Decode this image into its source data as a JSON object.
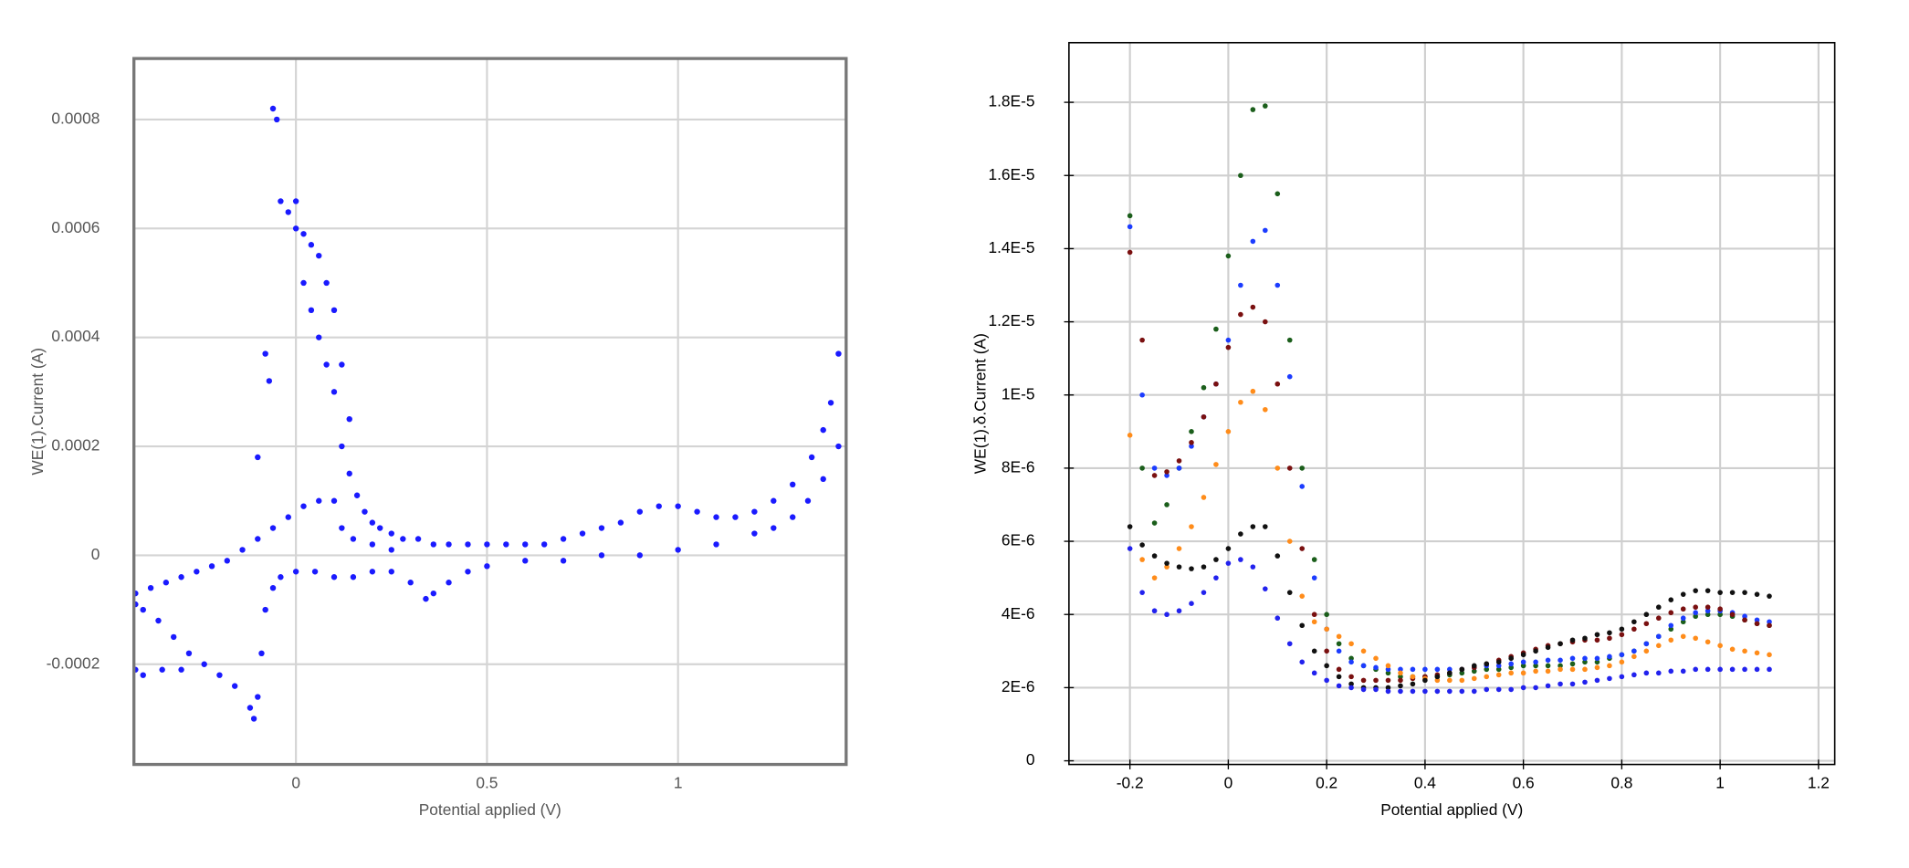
{
  "chart_data": [
    {
      "type": "scatter",
      "x_label": "Potential applied (V)",
      "y_label": "WE(1).Current (A)",
      "color": "#1a1aff",
      "grid": true,
      "xlim": [
        -0.424,
        1.44
      ],
      "ylim": [
        -0.000384,
        0.000912
      ],
      "xticks": [
        0,
        0.5,
        1
      ],
      "yticks": [
        -0.0002,
        0,
        0.0002,
        0.0004,
        0.0006,
        0.0008
      ],
      "x": [
        -0.42,
        -0.38,
        -0.34,
        -0.3,
        -0.26,
        -0.22,
        -0.18,
        -0.14,
        -0.1,
        -0.06,
        -0.02,
        0.02,
        0.06,
        0.1,
        -0.06,
        -0.05,
        -0.04,
        -0.02,
        0,
        0,
        0.02,
        0.02,
        0.04,
        0.04,
        0.06,
        0.06,
        0.08,
        0.08,
        0.1,
        0.1,
        0.12,
        0.12,
        0.14,
        -0.08,
        -0.1,
        -0.07,
        0.14,
        0.16,
        0.18,
        0.2,
        0.22,
        0.25,
        0.28,
        0.32,
        0.36,
        0.4,
        0.45,
        0.5,
        0.55,
        0.6,
        0.65,
        0.7,
        0.75,
        0.8,
        0.85,
        0.9,
        0.95,
        1.0,
        1.05,
        1.1,
        1.15,
        1.2,
        1.25,
        1.3,
        1.35,
        1.38,
        1.4,
        1.42,
        0.12,
        0.15,
        0.2,
        0.25,
        1.42,
        1.38,
        1.34,
        1.3,
        1.25,
        1.2,
        1.1,
        1.0,
        0.9,
        0.8,
        0.7,
        0.6,
        0.5,
        0.45,
        0.4,
        0.36,
        0.34,
        0.3,
        0.25,
        0.2,
        0.15,
        0.1,
        0.05,
        0,
        -0.04,
        -0.06,
        -0.08,
        -0.09,
        -0.1,
        -0.11,
        -0.12,
        -0.16,
        -0.2,
        -0.24,
        -0.28,
        -0.32,
        -0.36,
        -0.4,
        -0.42,
        -0.3,
        -0.35,
        -0.4,
        -0.42
      ],
      "values": [
        -7e-05,
        -6e-05,
        -5e-05,
        -4e-05,
        -3e-05,
        -2e-05,
        -1e-05,
        1e-05,
        3e-05,
        5e-05,
        7e-05,
        9e-05,
        0.0001,
        0.0001,
        0.00082,
        0.0008,
        0.00065,
        0.00063,
        0.00065,
        0.0006,
        0.00059,
        0.0005,
        0.00057,
        0.00045,
        0.00055,
        0.0004,
        0.0005,
        0.00035,
        0.00045,
        0.0003,
        0.00035,
        0.0002,
        0.00025,
        0.00037,
        0.00018,
        0.00032,
        0.00015,
        0.00011,
        8e-05,
        6e-05,
        5e-05,
        4e-05,
        3e-05,
        3e-05,
        2e-05,
        2e-05,
        2e-05,
        2e-05,
        2e-05,
        2e-05,
        2e-05,
        3e-05,
        4e-05,
        5e-05,
        6e-05,
        8e-05,
        9e-05,
        9e-05,
        8e-05,
        7e-05,
        7e-05,
        8e-05,
        0.0001,
        0.00013,
        0.00018,
        0.00023,
        0.00028,
        0.00037,
        5e-05,
        3e-05,
        2e-05,
        1e-05,
        0.0002,
        0.00014,
        0.0001,
        7e-05,
        5e-05,
        4e-05,
        2e-05,
        1e-05,
        0,
        0,
        -1e-05,
        -1e-05,
        -2e-05,
        -3e-05,
        -5e-05,
        -7e-05,
        -8e-05,
        -5e-05,
        -3e-05,
        -3e-05,
        -4e-05,
        -4e-05,
        -3e-05,
        -3e-05,
        -4e-05,
        -6e-05,
        -0.0001,
        -0.00018,
        -0.00026,
        -0.0003,
        -0.00028,
        -0.00024,
        -0.00022,
        -0.0002,
        -0.00018,
        -0.00015,
        -0.00012,
        -0.0001,
        -9e-05,
        -0.00021,
        -0.00021,
        -0.00022,
        -0.00021
      ]
    },
    {
      "type": "scatter",
      "x_label": "Potential applied (V)",
      "y_label": "WE(1).δ.Current (A)",
      "grid": true,
      "xlim": [
        -0.324,
        1.233
      ],
      "ylim": [
        -1e-07,
        1.963e-05
      ],
      "xticks": [
        -0.2,
        0,
        0.2,
        0.4,
        0.6,
        0.8,
        1,
        1.2
      ],
      "yticks": [
        0,
        {
          "value": 2e-06,
          "label": "2E-6"
        },
        {
          "value": 4e-06,
          "label": "4E-6"
        },
        {
          "value": 6e-06,
          "label": "6E-6"
        },
        {
          "value": 8e-06,
          "label": "8E-6"
        },
        {
          "value": 1e-05,
          "label": "1E-5"
        },
        {
          "value": 1.2e-05,
          "label": "1.2E-5"
        },
        {
          "value": 1.4e-05,
          "label": "1.4E-5"
        },
        {
          "value": 1.6e-05,
          "label": "1.6E-5"
        },
        {
          "value": 1.8e-05,
          "label": "1.8E-5"
        }
      ],
      "x": [
        -0.2,
        -0.175,
        -0.15,
        -0.125,
        -0.1,
        -0.075,
        -0.05,
        -0.025,
        0,
        0.025,
        0.05,
        0.075,
        0.1,
        0.125,
        0.15,
        0.175,
        0.2,
        0.225,
        0.25,
        0.275,
        0.3,
        0.325,
        0.35,
        0.375,
        0.4,
        0.425,
        0.45,
        0.475,
        0.5,
        0.525,
        0.55,
        0.575,
        0.6,
        0.625,
        0.65,
        0.675,
        0.7,
        0.725,
        0.75,
        0.775,
        0.8,
        0.825,
        0.85,
        0.875,
        0.9,
        0.925,
        0.95,
        0.975,
        1,
        1.025,
        1.05,
        1.075,
        1.1
      ],
      "series": [
        {
          "color": "#1b5e1b",
          "values": [
            1.49e-05,
            8e-06,
            6.5e-06,
            7e-06,
            8e-06,
            9e-06,
            1.02e-05,
            1.18e-05,
            1.38e-05,
            1.6e-05,
            1.78e-05,
            1.79e-05,
            1.55e-05,
            1.15e-05,
            8e-06,
            5.5e-06,
            4e-06,
            3.2e-06,
            2.8e-06,
            2.6e-06,
            2.5e-06,
            2.4e-06,
            2.3e-06,
            2.3e-06,
            2.3e-06,
            2.3e-06,
            2.35e-06,
            2.4e-06,
            2.45e-06,
            2.5e-06,
            2.5e-06,
            2.55e-06,
            2.6e-06,
            2.6e-06,
            2.6e-06,
            2.6e-06,
            2.65e-06,
            2.7e-06,
            2.7e-06,
            2.8e-06,
            2.9e-06,
            3e-06,
            3.2e-06,
            3.4e-06,
            3.6e-06,
            3.8e-06,
            3.95e-06,
            4e-06,
            4e-06,
            3.95e-06,
            3.85e-06,
            3.75e-06,
            3.7e-06
          ]
        },
        {
          "color": "#1c3cff",
          "values": [
            1.46e-05,
            1e-05,
            8e-06,
            7.8e-06,
            8e-06,
            8.6e-06,
            9.4e-06,
            1.03e-05,
            1.15e-05,
            1.3e-05,
            1.42e-05,
            1.45e-05,
            1.3e-05,
            1.05e-05,
            7.5e-06,
            5e-06,
            3.6e-06,
            3e-06,
            2.7e-06,
            2.6e-06,
            2.55e-06,
            2.5e-06,
            2.5e-06,
            2.5e-06,
            2.5e-06,
            2.5e-06,
            2.5e-06,
            2.5e-06,
            2.55e-06,
            2.6e-06,
            2.6e-06,
            2.65e-06,
            2.7e-06,
            2.7e-06,
            2.75e-06,
            2.75e-06,
            2.8e-06,
            2.8e-06,
            2.8e-06,
            2.85e-06,
            2.9e-06,
            3e-06,
            3.2e-06,
            3.4e-06,
            3.7e-06,
            3.9e-06,
            4.05e-06,
            4.1e-06,
            4.1e-06,
            4.05e-06,
            3.95e-06,
            3.85e-06,
            3.8e-06
          ]
        },
        {
          "color": "#7a1010",
          "values": [
            1.39e-05,
            1.15e-05,
            7.8e-06,
            7.9e-06,
            8.2e-06,
            8.7e-06,
            9.4e-06,
            1.03e-05,
            1.13e-05,
            1.22e-05,
            1.24e-05,
            1.2e-05,
            1.03e-05,
            8e-06,
            5.8e-06,
            4e-06,
            3e-06,
            2.5e-06,
            2.3e-06,
            2.2e-06,
            2.2e-06,
            2.2e-06,
            2.2e-06,
            2.25e-06,
            2.3e-06,
            2.35e-06,
            2.4e-06,
            2.5e-06,
            2.55e-06,
            2.65e-06,
            2.75e-06,
            2.85e-06,
            2.95e-06,
            3.05e-06,
            3.15e-06,
            3.2e-06,
            3.25e-06,
            3.3e-06,
            3.3e-06,
            3.35e-06,
            3.45e-06,
            3.6e-06,
            3.75e-06,
            3.9e-06,
            4.05e-06,
            4.15e-06,
            4.2e-06,
            4.2e-06,
            4.15e-06,
            4e-06,
            3.85e-06,
            3.75e-06,
            3.7e-06
          ]
        },
        {
          "color": "#ff8c1a",
          "values": [
            8.9e-06,
            5.5e-06,
            5e-06,
            5.3e-06,
            5.8e-06,
            6.4e-06,
            7.2e-06,
            8.1e-06,
            9e-06,
            9.8e-06,
            1.01e-05,
            9.6e-06,
            8e-06,
            6e-06,
            4.5e-06,
            3.8e-06,
            3.6e-06,
            3.4e-06,
            3.2e-06,
            3e-06,
            2.8e-06,
            2.6e-06,
            2.4e-06,
            2.3e-06,
            2.25e-06,
            2.2e-06,
            2.2e-06,
            2.2e-06,
            2.25e-06,
            2.3e-06,
            2.35e-06,
            2.4e-06,
            2.4e-06,
            2.45e-06,
            2.45e-06,
            2.5e-06,
            2.5e-06,
            2.5e-06,
            2.55e-06,
            2.6e-06,
            2.7e-06,
            2.85e-06,
            3e-06,
            3.15e-06,
            3.3e-06,
            3.4e-06,
            3.35e-06,
            3.25e-06,
            3.15e-06,
            3.05e-06,
            3e-06,
            2.95e-06,
            2.9e-06
          ]
        },
        {
          "color": "#111111",
          "values": [
            6.4e-06,
            5.9e-06,
            5.6e-06,
            5.4e-06,
            5.3e-06,
            5.25e-06,
            5.3e-06,
            5.5e-06,
            5.8e-06,
            6.2e-06,
            6.4e-06,
            6.4e-06,
            5.6e-06,
            4.6e-06,
            3.7e-06,
            3e-06,
            2.6e-06,
            2.3e-06,
            2.1e-06,
            2e-06,
            2e-06,
            2e-06,
            2.05e-06,
            2.1e-06,
            2.2e-06,
            2.3e-06,
            2.4e-06,
            2.5e-06,
            2.6e-06,
            2.65e-06,
            2.7e-06,
            2.8e-06,
            2.9e-06,
            3e-06,
            3.1e-06,
            3.2e-06,
            3.3e-06,
            3.35e-06,
            3.45e-06,
            3.5e-06,
            3.6e-06,
            3.8e-06,
            4e-06,
            4.2e-06,
            4.4e-06,
            4.55e-06,
            4.65e-06,
            4.65e-06,
            4.6e-06,
            4.6e-06,
            4.6e-06,
            4.55e-06,
            4.5e-06
          ]
        },
        {
          "color": "#2222ee",
          "values": [
            5.8e-06,
            4.6e-06,
            4.1e-06,
            4e-06,
            4.1e-06,
            4.3e-06,
            4.6e-06,
            5e-06,
            5.4e-06,
            5.5e-06,
            5.3e-06,
            4.7e-06,
            3.9e-06,
            3.2e-06,
            2.7e-06,
            2.4e-06,
            2.2e-06,
            2.05e-06,
            2e-06,
            1.95e-06,
            1.95e-06,
            1.9e-06,
            1.9e-06,
            1.9e-06,
            1.9e-06,
            1.9e-06,
            1.9e-06,
            1.9e-06,
            1.9e-06,
            1.95e-06,
            1.95e-06,
            1.95e-06,
            2e-06,
            2e-06,
            2.05e-06,
            2.1e-06,
            2.1e-06,
            2.15e-06,
            2.2e-06,
            2.25e-06,
            2.3e-06,
            2.35e-06,
            2.4e-06,
            2.4e-06,
            2.45e-06,
            2.45e-06,
            2.5e-06,
            2.5e-06,
            2.5e-06,
            2.5e-06,
            2.5e-06,
            2.5e-06,
            2.5e-06
          ]
        }
      ]
    }
  ]
}
